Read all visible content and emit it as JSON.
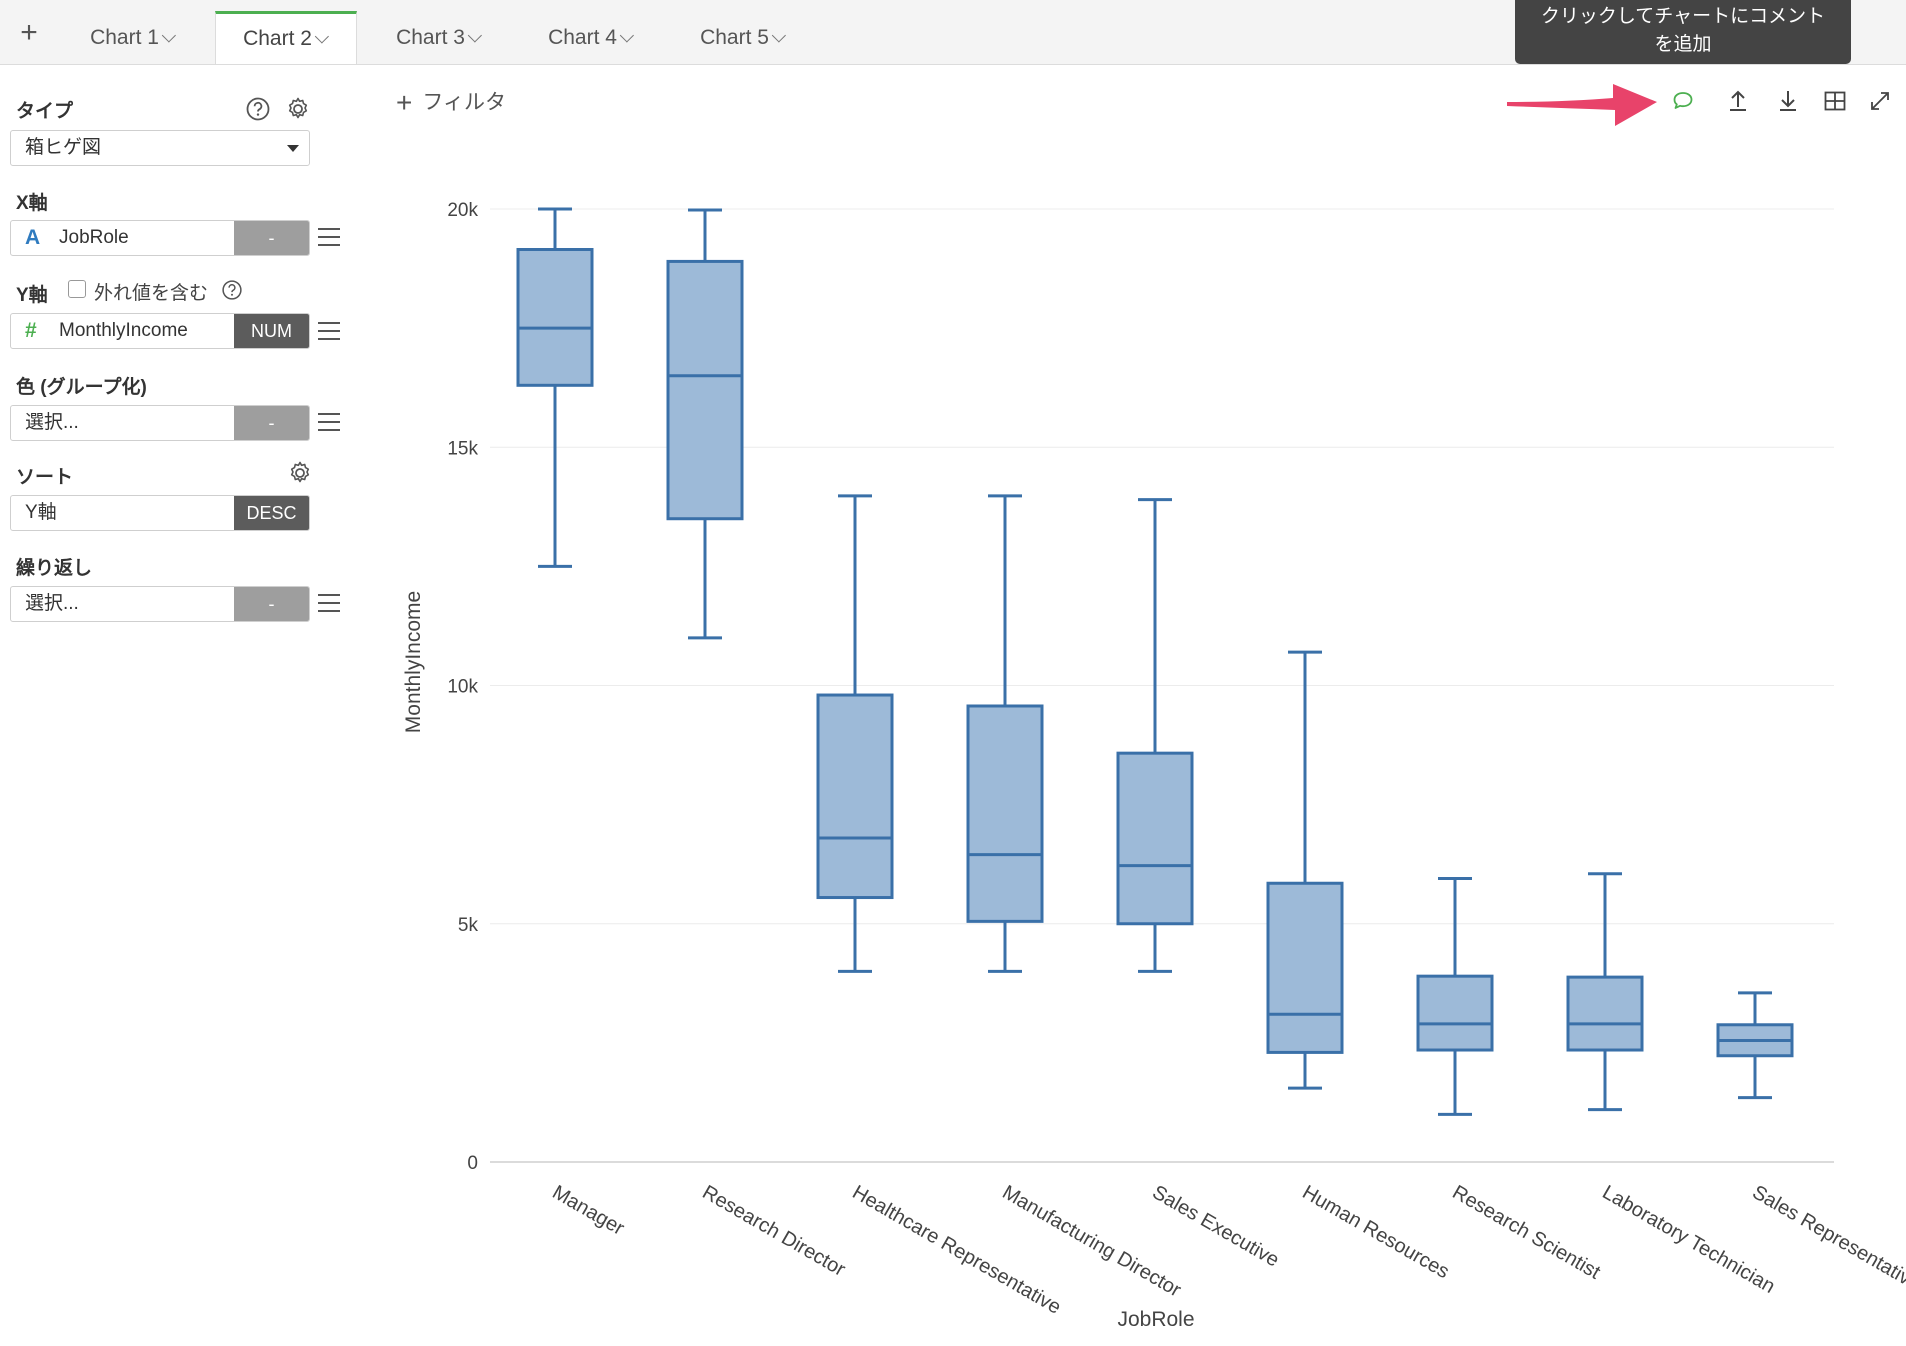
{
  "tabs": {
    "add_label": "+",
    "items": [
      {
        "label": "Chart 1",
        "active": false
      },
      {
        "label": "Chart 2",
        "active": true
      },
      {
        "label": "Chart 3",
        "active": false
      },
      {
        "label": "Chart 4",
        "active": false
      },
      {
        "label": "Chart 5",
        "active": false
      }
    ]
  },
  "tooltip": {
    "line1": "クリックしてチャートにコメント",
    "line2": "を追加"
  },
  "panel": {
    "type_label": "タイプ",
    "type_value": "箱ヒゲ図",
    "xaxis_label": "X軸",
    "xaxis_type_icon": "A",
    "xaxis_value": "JobRole",
    "xaxis_tag": "-",
    "yaxis_label": "Y軸",
    "outlier_label": "外れ値を含む",
    "yaxis_type_icon": "#",
    "yaxis_value": "MonthlyIncome",
    "yaxis_tag": "NUM",
    "color_label": "色 (グループ化)",
    "color_value": "選択...",
    "color_tag": "-",
    "sort_label": "ソート",
    "sort_value": "Y軸",
    "sort_tag": "DESC",
    "repeat_label": "繰り返し",
    "repeat_value": "選択...",
    "repeat_tag": "-"
  },
  "toolbar": {
    "filter_label": "フィルタ",
    "icons": [
      "comment-icon",
      "upload-icon",
      "download-icon",
      "table-icon",
      "expand-icon"
    ]
  },
  "colors": {
    "accent_green": "#4caf50",
    "box_fill": "#9dbad8",
    "box_stroke": "#3a70a8",
    "arrow": "#e8436a"
  },
  "chart_data": {
    "type": "box",
    "xlabel": "JobRole",
    "ylabel": "MonthlyIncome",
    "ylim": [
      0,
      20000
    ],
    "yticks": [
      0,
      5000,
      10000,
      15000,
      20000
    ],
    "ytick_labels": [
      "0",
      "5k",
      "10k",
      "15k",
      "20k"
    ],
    "grid": true,
    "categories": [
      "Manager",
      "Research Director",
      "Healthcare Representative",
      "Manufacturing Director",
      "Sales Executive",
      "Human Resources",
      "Research Scientist",
      "Laboratory Technician",
      "Sales Representative"
    ],
    "boxes": [
      {
        "min": 12500,
        "q1": 16300,
        "median": 17500,
        "q3": 19150,
        "max": 20000
      },
      {
        "min": 11000,
        "q1": 13500,
        "median": 16500,
        "q3": 18900,
        "max": 19980
      },
      {
        "min": 4000,
        "q1": 5550,
        "median": 6800,
        "q3": 9800,
        "max": 13980
      },
      {
        "min": 4000,
        "q1": 5050,
        "median": 6450,
        "q3": 9570,
        "max": 13980
      },
      {
        "min": 4000,
        "q1": 5000,
        "median": 6220,
        "q3": 8580,
        "max": 13900
      },
      {
        "min": 1550,
        "q1": 2300,
        "median": 3100,
        "q3": 5850,
        "max": 10700
      },
      {
        "min": 1000,
        "q1": 2350,
        "median": 2900,
        "q3": 3900,
        "max": 5950
      },
      {
        "min": 1100,
        "q1": 2350,
        "median": 2900,
        "q3": 3880,
        "max": 6050
      },
      {
        "min": 1350,
        "q1": 2230,
        "median": 2550,
        "q3": 2880,
        "max": 3550
      }
    ]
  }
}
